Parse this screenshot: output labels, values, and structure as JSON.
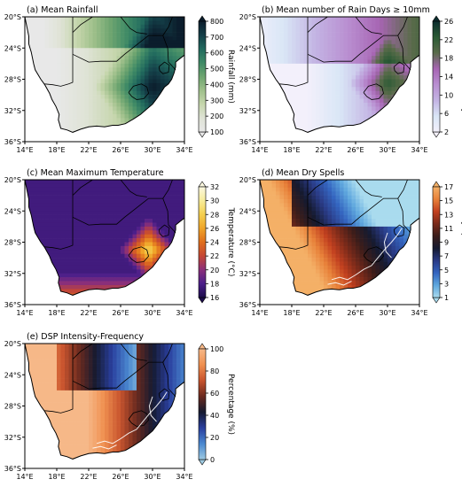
{
  "chart_data": [
    {
      "type": "heatmap",
      "title": "(a) Mean Rainfall",
      "colorbar": {
        "label": "Rainfall (mm)",
        "ticks": [
          "100",
          "200",
          "300",
          "400",
          "500",
          "600",
          "700",
          "800"
        ],
        "colors": [
          "#e8e8e8",
          "#dfe3d6",
          "#c6d6ad",
          "#9fc08b",
          "#6ea570",
          "#3f8a66",
          "#216a5e",
          "#143f48",
          "#0b1d2c"
        ]
      },
      "xticks": [
        "14°E",
        "18°E",
        "22°E",
        "26°E",
        "30°E",
        "34°E"
      ],
      "yticks": [
        "20°S",
        "24°S",
        "28°S",
        "32°S",
        "36°S"
      ]
    },
    {
      "type": "heatmap",
      "title": "(b) Mean number of Rain Days ≥ 10mm",
      "colorbar": {
        "label": "Number of rain days",
        "ticks": [
          "2",
          "6",
          "10",
          "14",
          "18",
          "22",
          "26"
        ],
        "colors": [
          "#f3f0fb",
          "#d9e6f6",
          "#c3b3e3",
          "#b98fd1",
          "#a765b3",
          "#5a6b4a",
          "#2a5a34",
          "#0c2d2e"
        ]
      },
      "xticks": [
        "14°E",
        "18°E",
        "22°E",
        "26°E",
        "30°E",
        "34°E"
      ],
      "yticks": [
        "20°S",
        "24°S",
        "28°S",
        "32°S",
        "36°S"
      ]
    },
    {
      "type": "heatmap",
      "title": "(c) Mean Maximum Temperature",
      "colorbar": {
        "label": "Temperature (°C)",
        "ticks": [
          "16",
          "18",
          "20",
          "22",
          "24",
          "26",
          "28",
          "30",
          "32"
        ],
        "colors": [
          "#1b0c4a",
          "#4b1f8a",
          "#8a2f7a",
          "#c44735",
          "#e06e1c",
          "#f0a52a",
          "#f4cf4f",
          "#f7ec9a",
          "#fbf8e0"
        ]
      },
      "xticks": [
        "14°E",
        "18°E",
        "22°E",
        "26°E",
        "30°E",
        "34°E"
      ],
      "yticks": [
        "20°S",
        "24°S",
        "28°S",
        "32°S",
        "36°S"
      ]
    },
    {
      "type": "heatmap",
      "title": "(d) Mean Dry Spells",
      "colorbar": {
        "label": "Dry spell count",
        "ticks": [
          "1",
          "3",
          "5",
          "7",
          "9",
          "11",
          "13",
          "15",
          "17"
        ],
        "colors": [
          "#a9dbee",
          "#5ea7de",
          "#3465c0",
          "#2a3b86",
          "#151a30",
          "#3b1d1a",
          "#7a2a1a",
          "#c2401f",
          "#e8823a",
          "#f4b067"
        ]
      },
      "xticks": [
        "14°E",
        "18°E",
        "22°E",
        "26°E",
        "30°E",
        "34°E"
      ],
      "yticks": [
        "20°S",
        "24°S",
        "28°S",
        "32°S",
        "36°S"
      ]
    },
    {
      "type": "heatmap",
      "title": "(e) DSP Intensity-Frequency",
      "colorbar": {
        "label": "Percentage (%)",
        "ticks": [
          "0",
          "20",
          "40",
          "60",
          "80",
          "100"
        ],
        "colors": [
          "#9ecae1",
          "#4a88d0",
          "#2a3f9e",
          "#151a30",
          "#6a2a1f",
          "#c8542e",
          "#f09050",
          "#f6b888"
        ]
      },
      "xticks": [
        "14°E",
        "18°E",
        "22°E",
        "26°E",
        "30°E",
        "34°E"
      ],
      "yticks": [
        "20°S",
        "24°S",
        "28°S",
        "32°S",
        "36°S"
      ]
    }
  ]
}
